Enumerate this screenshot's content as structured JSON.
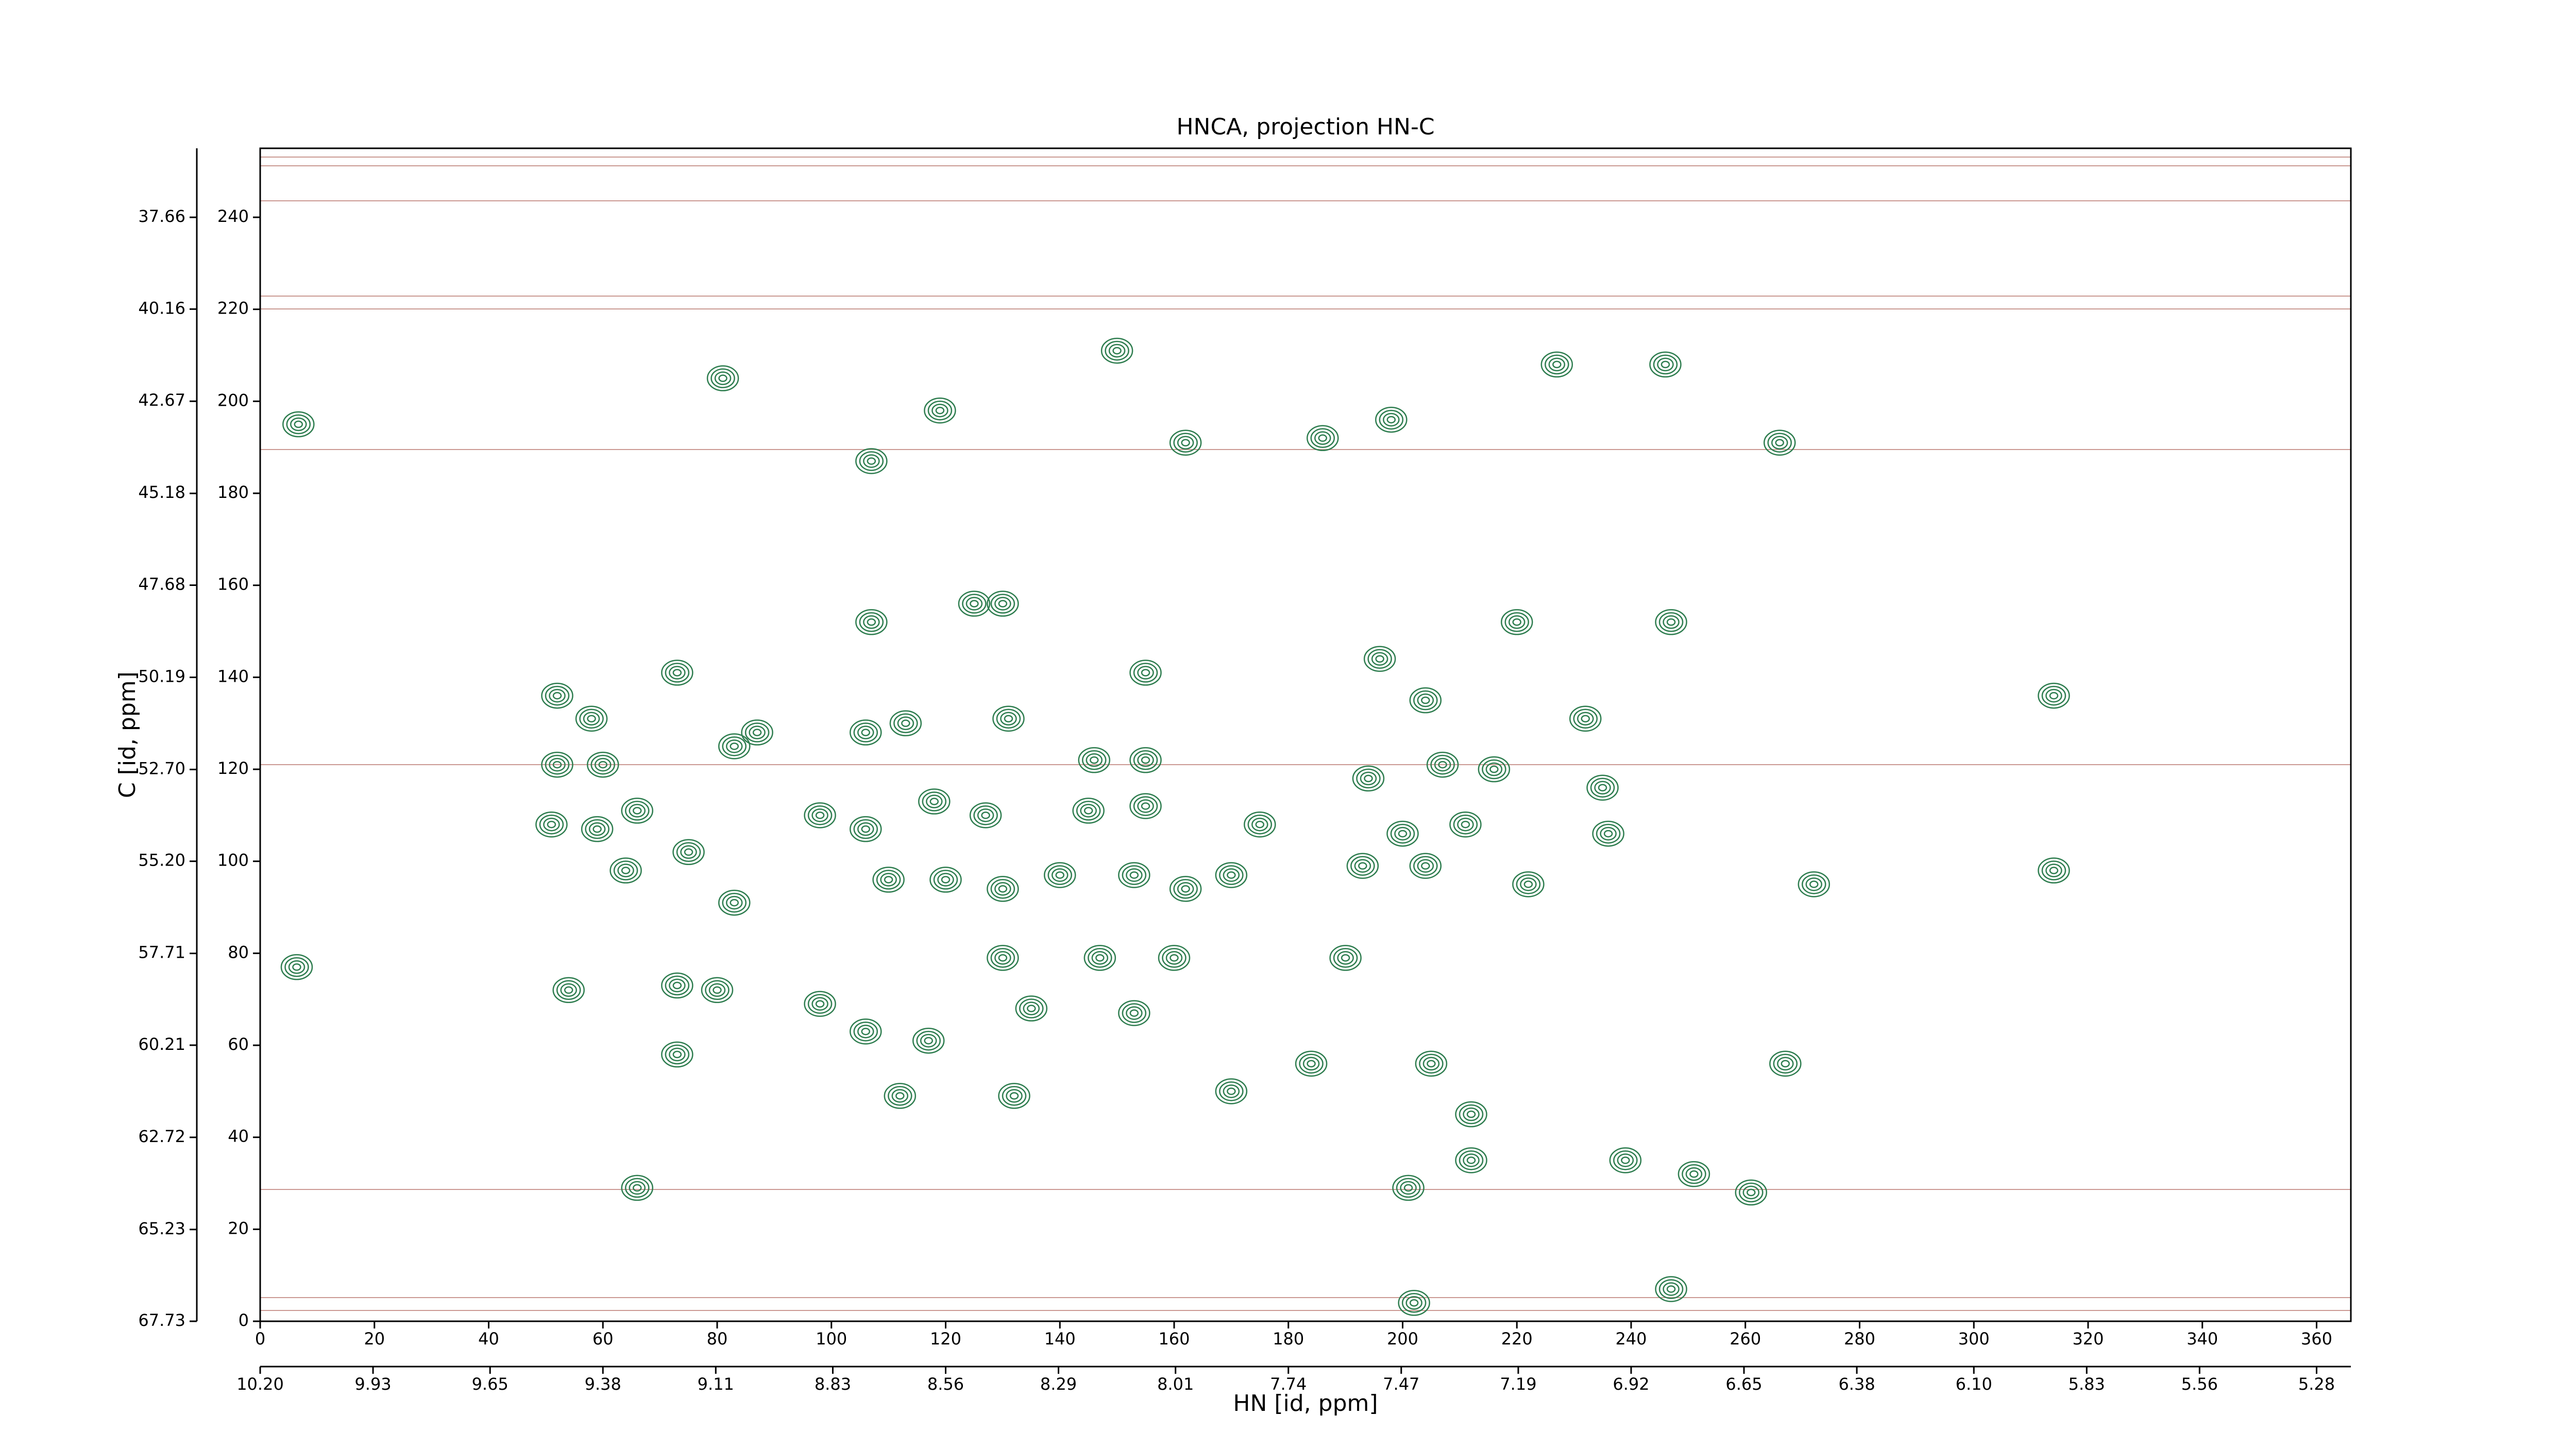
{
  "chart_data": {
    "type": "contour",
    "title": "HNCA, projection HN-C",
    "xlabel": "HN [id, ppm]",
    "ylabel": "C [id, ppm]",
    "color": "#2e7d4f",
    "xlim": [
      0,
      366
    ],
    "ylim": [
      0,
      255
    ],
    "xticks": [
      0,
      20,
      40,
      60,
      80,
      100,
      120,
      140,
      160,
      180,
      200,
      220,
      240,
      260,
      280,
      300,
      320,
      340,
      360
    ],
    "yticks": [
      0,
      20,
      40,
      60,
      80,
      100,
      120,
      140,
      160,
      180,
      200,
      220,
      240
    ],
    "x2lim": [
      10.2,
      5.198
    ],
    "x2ticks": [
      {
        "value": 10.2,
        "label": "10.20"
      },
      9.93,
      9.65,
      9.38,
      9.11,
      8.83,
      8.56,
      8.29,
      8.01,
      7.74,
      7.47,
      7.19,
      6.92,
      6.65,
      6.38,
      {
        "value": 6.1,
        "label": "6.10"
      },
      5.83,
      5.56,
      5.28
    ],
    "y2lim": [
      67.73,
      35.78
    ],
    "y2ticks": [
      67.73,
      65.23,
      62.72,
      60.21,
      57.71,
      {
        "value": 55.2,
        "label": "55.20"
      },
      {
        "value": 52.7,
        "label": "52.70"
      },
      50.19,
      47.68,
      45.18,
      42.67,
      40.16,
      37.66
    ],
    "x": [
      6.7,
      81,
      119,
      107,
      150,
      162,
      186,
      198,
      227,
      246,
      266,
      125,
      130,
      107,
      220,
      247,
      73,
      52,
      58,
      155,
      196,
      204,
      232,
      314,
      52,
      60,
      83,
      87,
      106,
      113,
      131,
      146,
      155,
      194,
      207,
      216,
      235,
      66,
      51,
      59,
      75,
      98,
      106,
      118,
      127,
      145,
      155,
      175,
      200,
      211,
      236,
      64,
      83,
      110,
      120,
      130,
      140,
      153,
      162,
      170,
      193,
      204,
      222,
      272,
      314,
      6.4,
      54,
      73,
      80,
      98,
      106,
      117,
      130,
      135,
      147,
      153,
      160,
      190,
      73,
      112,
      132,
      170,
      184,
      205,
      267,
      212,
      212,
      66,
      201,
      239,
      251,
      261,
      247,
      202
    ],
    "y": [
      195,
      205,
      198,
      187,
      211,
      191,
      192,
      196,
      208,
      208,
      191,
      156,
      156,
      152,
      152,
      152,
      141,
      136,
      131,
      141,
      144,
      135,
      131,
      136,
      121,
      121,
      125,
      128,
      128,
      130,
      131,
      122,
      122,
      118,
      121,
      120,
      116,
      111,
      108,
      107,
      102,
      110,
      107,
      113,
      110,
      111,
      112,
      108,
      106,
      108,
      106,
      98,
      91,
      96,
      96,
      94,
      97,
      97,
      94,
      97,
      99,
      99,
      95,
      95,
      98,
      77,
      72,
      73,
      72,
      69,
      63,
      61,
      79,
      68,
      79,
      67,
      79,
      79,
      58,
      49,
      49,
      50,
      56,
      56,
      56,
      45,
      35,
      29,
      29,
      35,
      32,
      28,
      7,
      4
    ]
  }
}
